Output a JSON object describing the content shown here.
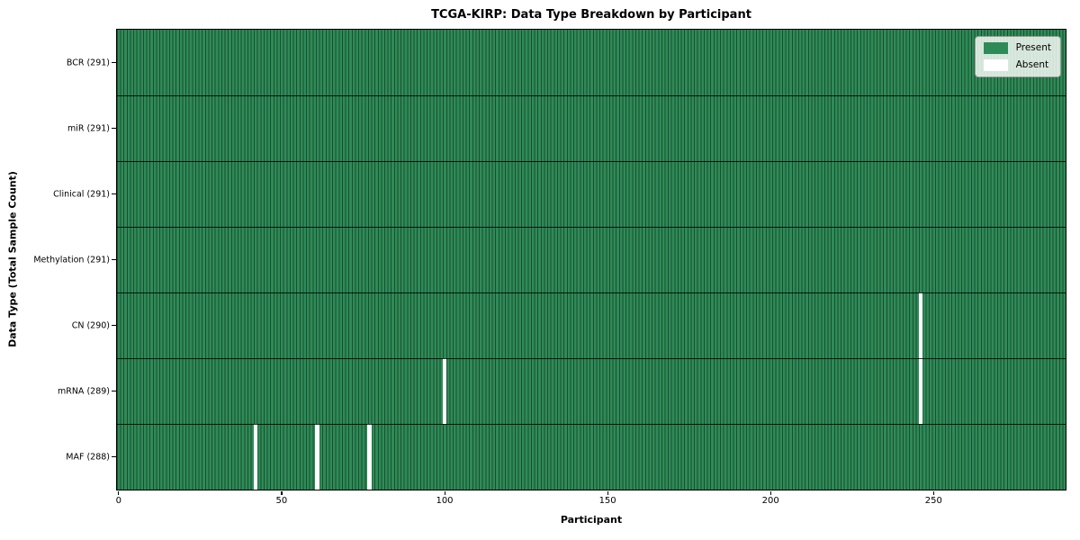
{
  "chart_data": {
    "type": "heatmap",
    "title": "TCGA-KIRP: Data Type Breakdown by Participant",
    "xlabel": "Participant",
    "ylabel": "Data Type (Total Sample Count)",
    "n_participants": 291,
    "x_ticks": [
      0,
      50,
      100,
      150,
      200,
      250
    ],
    "xlim": [
      -0.5,
      290.5
    ],
    "grid": "row-and-cell-borders",
    "legend_position": "upper right",
    "rows": [
      {
        "label": "BCR (291)",
        "data_type": "BCR",
        "present_count": 291,
        "absent_participants": []
      },
      {
        "label": "miR (291)",
        "data_type": "miR",
        "present_count": 291,
        "absent_participants": []
      },
      {
        "label": "Clinical (291)",
        "data_type": "Clinical",
        "present_count": 291,
        "absent_participants": []
      },
      {
        "label": "Methylation (291)",
        "data_type": "Methylation",
        "present_count": 291,
        "absent_participants": []
      },
      {
        "label": "CN (290)",
        "data_type": "CN",
        "present_count": 290,
        "absent_participants": [
          246
        ]
      },
      {
        "label": "mRNA (289)",
        "data_type": "mRNA",
        "present_count": 289,
        "absent_participants": [
          100,
          246
        ]
      },
      {
        "label": "MAF (288)",
        "data_type": "MAF",
        "present_count": 288,
        "absent_participants": [
          42,
          61,
          77
        ]
      }
    ],
    "legend": [
      {
        "label": "Present",
        "color": "#2e8b57"
      },
      {
        "label": "Absent",
        "color": "#ffffff"
      }
    ],
    "colors": {
      "present": "#2e8b57",
      "cell_edge": "#1b4d31",
      "row_divider": "rgba(0,0,0,0.82)",
      "absent": "#ffffff",
      "axis": "#000000"
    }
  }
}
